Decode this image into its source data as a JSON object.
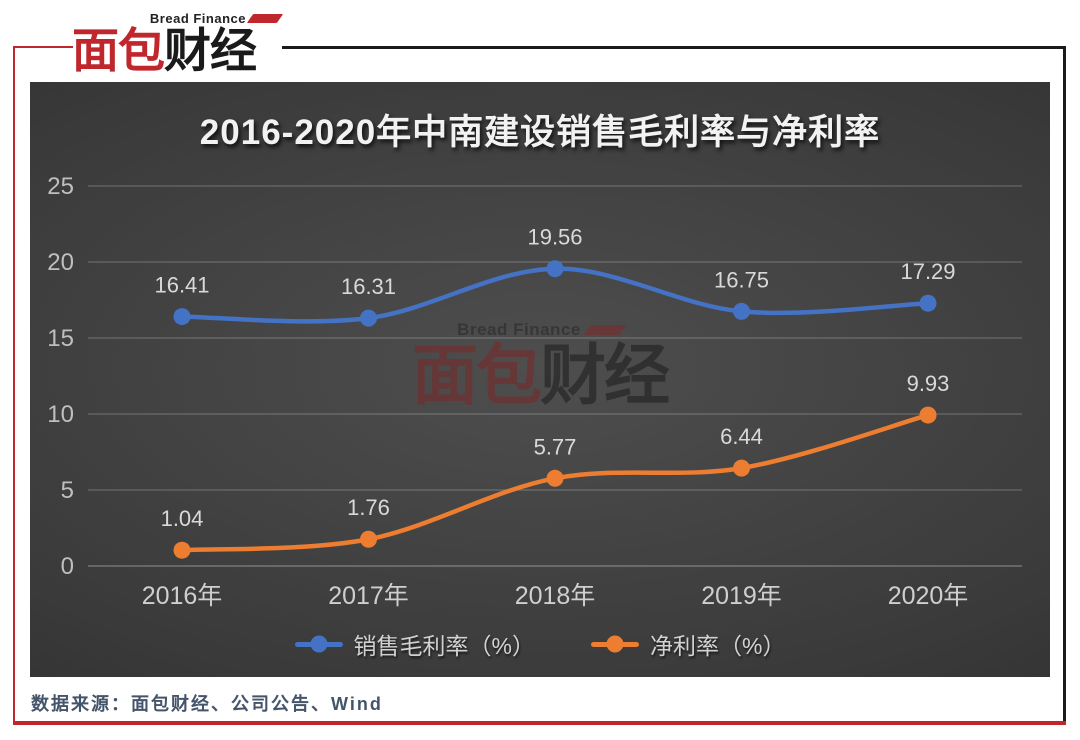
{
  "logo": {
    "subtitle": "Bread Finance",
    "title_red": "面包",
    "title_black": "财经"
  },
  "watermark": {
    "subtitle": "Bread Finance",
    "title_red": "面包",
    "title_black": "财经"
  },
  "chart_data": {
    "type": "line",
    "title": "2016-2020年中南建设销售毛利率与净利率",
    "categories": [
      "2016年",
      "2017年",
      "2018年",
      "2019年",
      "2020年"
    ],
    "series": [
      {
        "name": "销售毛利率（%）",
        "color": "#4472C4",
        "values": [
          16.41,
          16.31,
          19.56,
          16.75,
          17.29
        ]
      },
      {
        "name": "净利率（%）",
        "color": "#ED7D31",
        "values": [
          1.04,
          1.76,
          5.77,
          6.44,
          9.93
        ]
      }
    ],
    "ylim": [
      0,
      25
    ],
    "yticks": [
      0,
      5,
      10,
      15,
      20,
      25
    ],
    "grid": "horizontal",
    "legend_position": "bottom",
    "data_labels": true,
    "smooth_lines": true
  },
  "footer": {
    "source": "数据来源：面包财经、公司公告、Wind"
  }
}
